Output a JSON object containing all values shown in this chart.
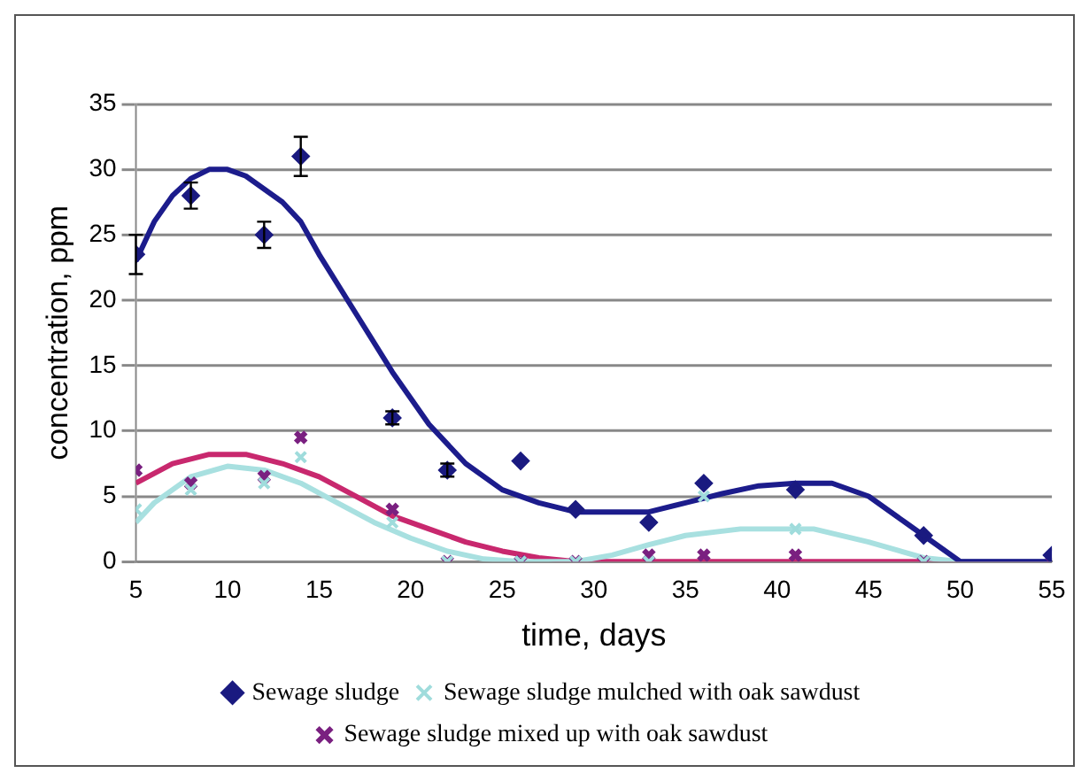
{
  "chart_data": {
    "type": "scatter",
    "xlabel": "time, days",
    "ylabel": "concentration, ppm",
    "xlim": [
      5,
      55
    ],
    "xticks": [
      5,
      10,
      15,
      20,
      25,
      30,
      35,
      40,
      45,
      50,
      55
    ],
    "ylim": [
      0,
      35
    ],
    "yticks": [
      0,
      5,
      10,
      15,
      20,
      25,
      30,
      35
    ],
    "grid": "y",
    "legend": "bottom",
    "series": [
      {
        "name": "Sewage sludge",
        "marker": "diamond",
        "color": "#1a1a80",
        "x": [
          5,
          8,
          12,
          14,
          19,
          22,
          26,
          29,
          33,
          36,
          41,
          48,
          55
        ],
        "values": [
          23.5,
          28,
          25,
          31,
          11,
          7,
          7.7,
          4,
          3,
          6,
          5.5,
          2,
          0.5
        ],
        "errors": [
          1.5,
          1,
          1,
          1.5,
          0.5,
          0.5,
          null,
          null,
          null,
          null,
          null,
          null,
          null
        ]
      },
      {
        "name": "Sewage sludge mulched with oak sawdust",
        "marker": "cross",
        "color": "#9fdcdc",
        "x": [
          5,
          8,
          12,
          14,
          19,
          22,
          26,
          29,
          33,
          36,
          41,
          48,
          55
        ],
        "values": [
          4,
          5.5,
          6,
          8,
          3,
          0,
          0,
          0,
          0,
          5,
          2.5,
          0,
          0
        ]
      },
      {
        "name": "Sewage sludge mixed up with oak sawdust",
        "marker": "cross",
        "color": "#7a2080",
        "x": [
          5,
          8,
          12,
          14,
          19,
          22,
          26,
          29,
          33,
          36,
          41,
          48,
          55
        ],
        "values": [
          7,
          6,
          6.5,
          9.5,
          4,
          0,
          0,
          0,
          0.5,
          0.5,
          0.5,
          0,
          0
        ]
      },
      {
        "type": "line",
        "marker": "none",
        "color": "#1c1c8c",
        "x": [
          5,
          6,
          7,
          8,
          9,
          10,
          11,
          12,
          13,
          14,
          15,
          17,
          19,
          21,
          23,
          25,
          27,
          29,
          31,
          33,
          35,
          37,
          39,
          41,
          43,
          45,
          47,
          49,
          50,
          55
        ],
        "values": [
          23,
          26,
          28,
          29.3,
          30,
          30,
          29.5,
          28.5,
          27.5,
          26,
          23.5,
          19,
          14.5,
          10.5,
          7.5,
          5.5,
          4.5,
          3.8,
          3.8,
          3.8,
          4.5,
          5.2,
          5.8,
          6,
          6,
          5,
          3,
          1,
          0,
          0
        ]
      },
      {
        "type": "line",
        "marker": "none",
        "color": "#a8e0e0",
        "x": [
          5,
          6,
          8,
          10,
          12,
          14,
          16,
          18,
          20,
          22,
          24,
          26,
          29,
          31,
          33,
          35,
          38,
          42,
          45,
          48,
          50,
          55
        ],
        "values": [
          3,
          4.5,
          6.5,
          7.3,
          7,
          6,
          4.5,
          3,
          1.8,
          0.8,
          0.2,
          0,
          0,
          0.5,
          1.3,
          2,
          2.5,
          2.5,
          1.5,
          0.3,
          0,
          0
        ]
      },
      {
        "type": "line",
        "marker": "none",
        "color": "#c8286e",
        "x": [
          5,
          7,
          9,
          11,
          13,
          15,
          17,
          19,
          21,
          23,
          25,
          27,
          29,
          55
        ],
        "values": [
          6,
          7.5,
          8.2,
          8.2,
          7.5,
          6.5,
          5,
          3.5,
          2.5,
          1.5,
          0.8,
          0.3,
          0,
          0
        ]
      }
    ]
  }
}
